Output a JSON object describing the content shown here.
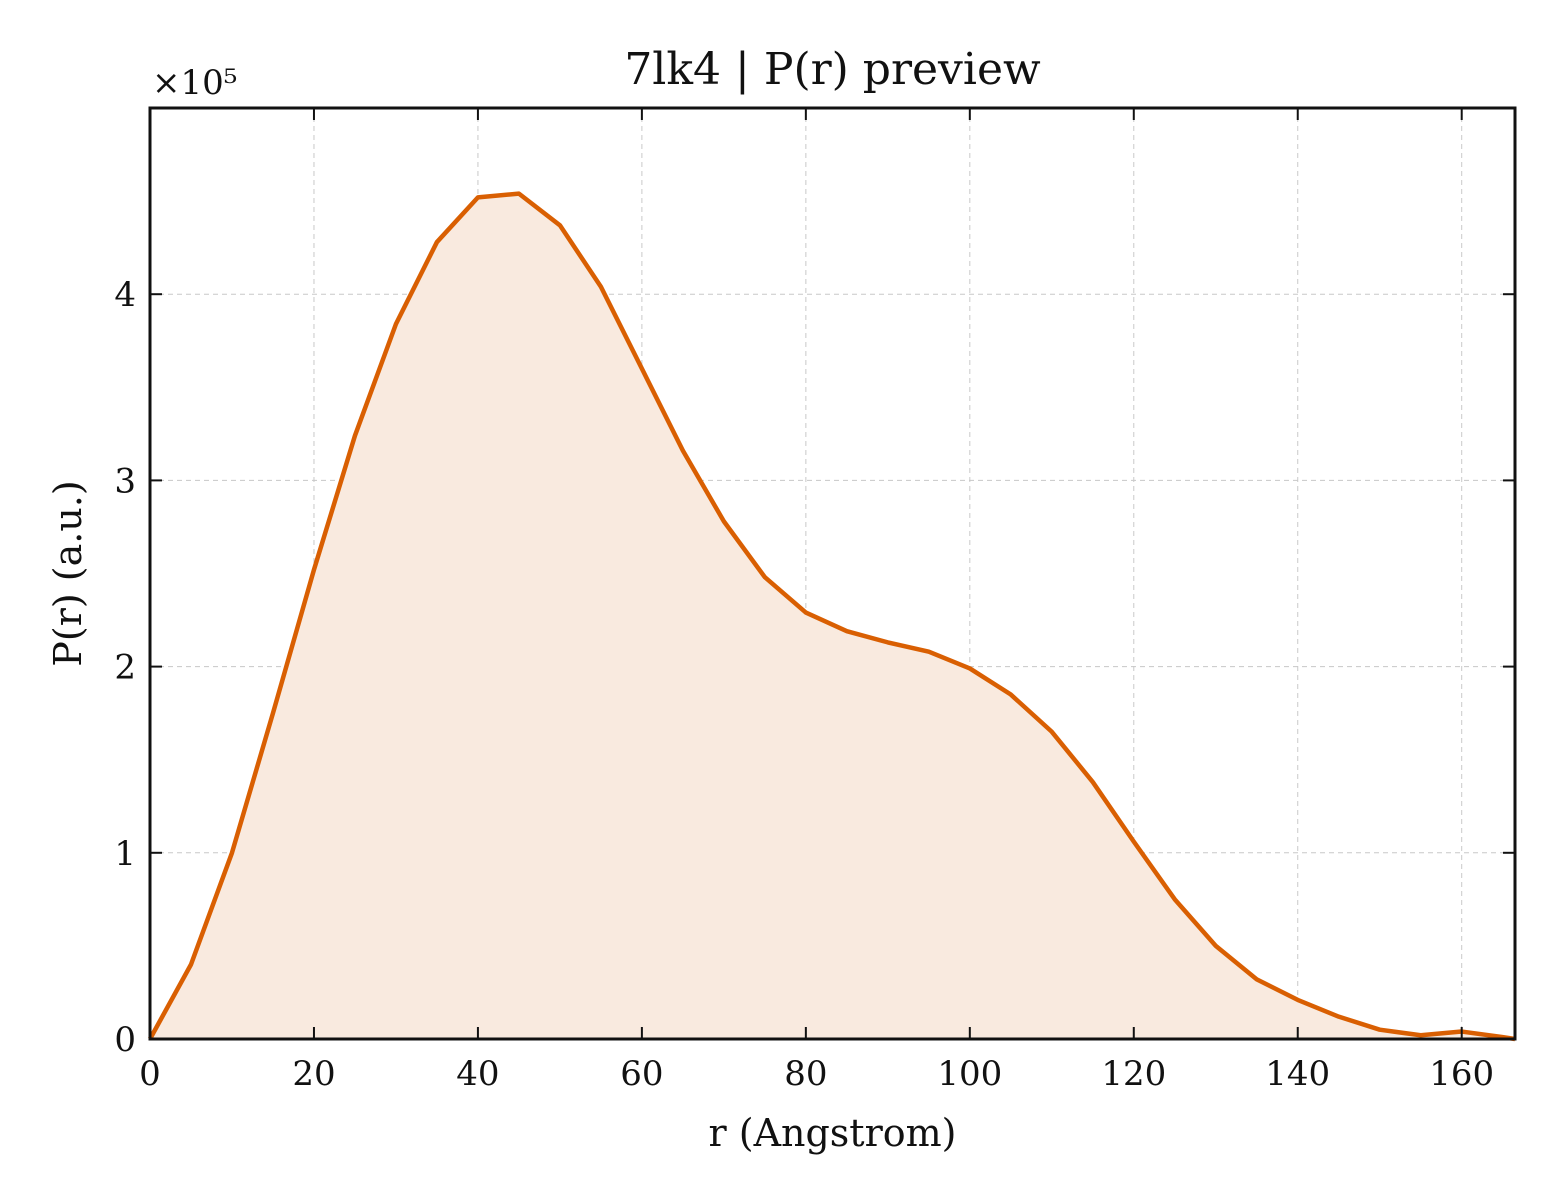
{
  "chart_data": {
    "type": "area",
    "title": "7lk4 | P(r) preview",
    "xlabel": "r (Angstrom)",
    "ylabel": "P(r) (a.u.)",
    "y_offset_label": "×10⁵",
    "xlim": [
      0,
      166.5
    ],
    "ylim": [
      0,
      5.0
    ],
    "x_ticks": [
      0,
      20,
      40,
      60,
      80,
      100,
      120,
      140,
      160
    ],
    "y_ticks": [
      0,
      1,
      2,
      3,
      4
    ],
    "grid": true,
    "series": [
      {
        "line_color": "#d95f02",
        "fill_color": "#f9eadf",
        "x": [
          0,
          5,
          10,
          15,
          20,
          25,
          30,
          35,
          40,
          45,
          50,
          55,
          60,
          65,
          70,
          75,
          80,
          85,
          90,
          95,
          100,
          105,
          110,
          115,
          120,
          125,
          130,
          135,
          140,
          145,
          150,
          155,
          160,
          165,
          166.5
        ],
        "y": [
          0.0,
          0.4,
          1.0,
          1.75,
          2.52,
          3.24,
          3.84,
          4.28,
          4.52,
          4.54,
          4.37,
          4.04,
          3.6,
          3.16,
          2.78,
          2.48,
          2.29,
          2.19,
          2.13,
          2.08,
          1.99,
          1.85,
          1.65,
          1.38,
          1.06,
          0.75,
          0.5,
          0.32,
          0.21,
          0.12,
          0.05,
          0.02,
          0.04,
          0.01,
          0.0
        ]
      }
    ]
  }
}
